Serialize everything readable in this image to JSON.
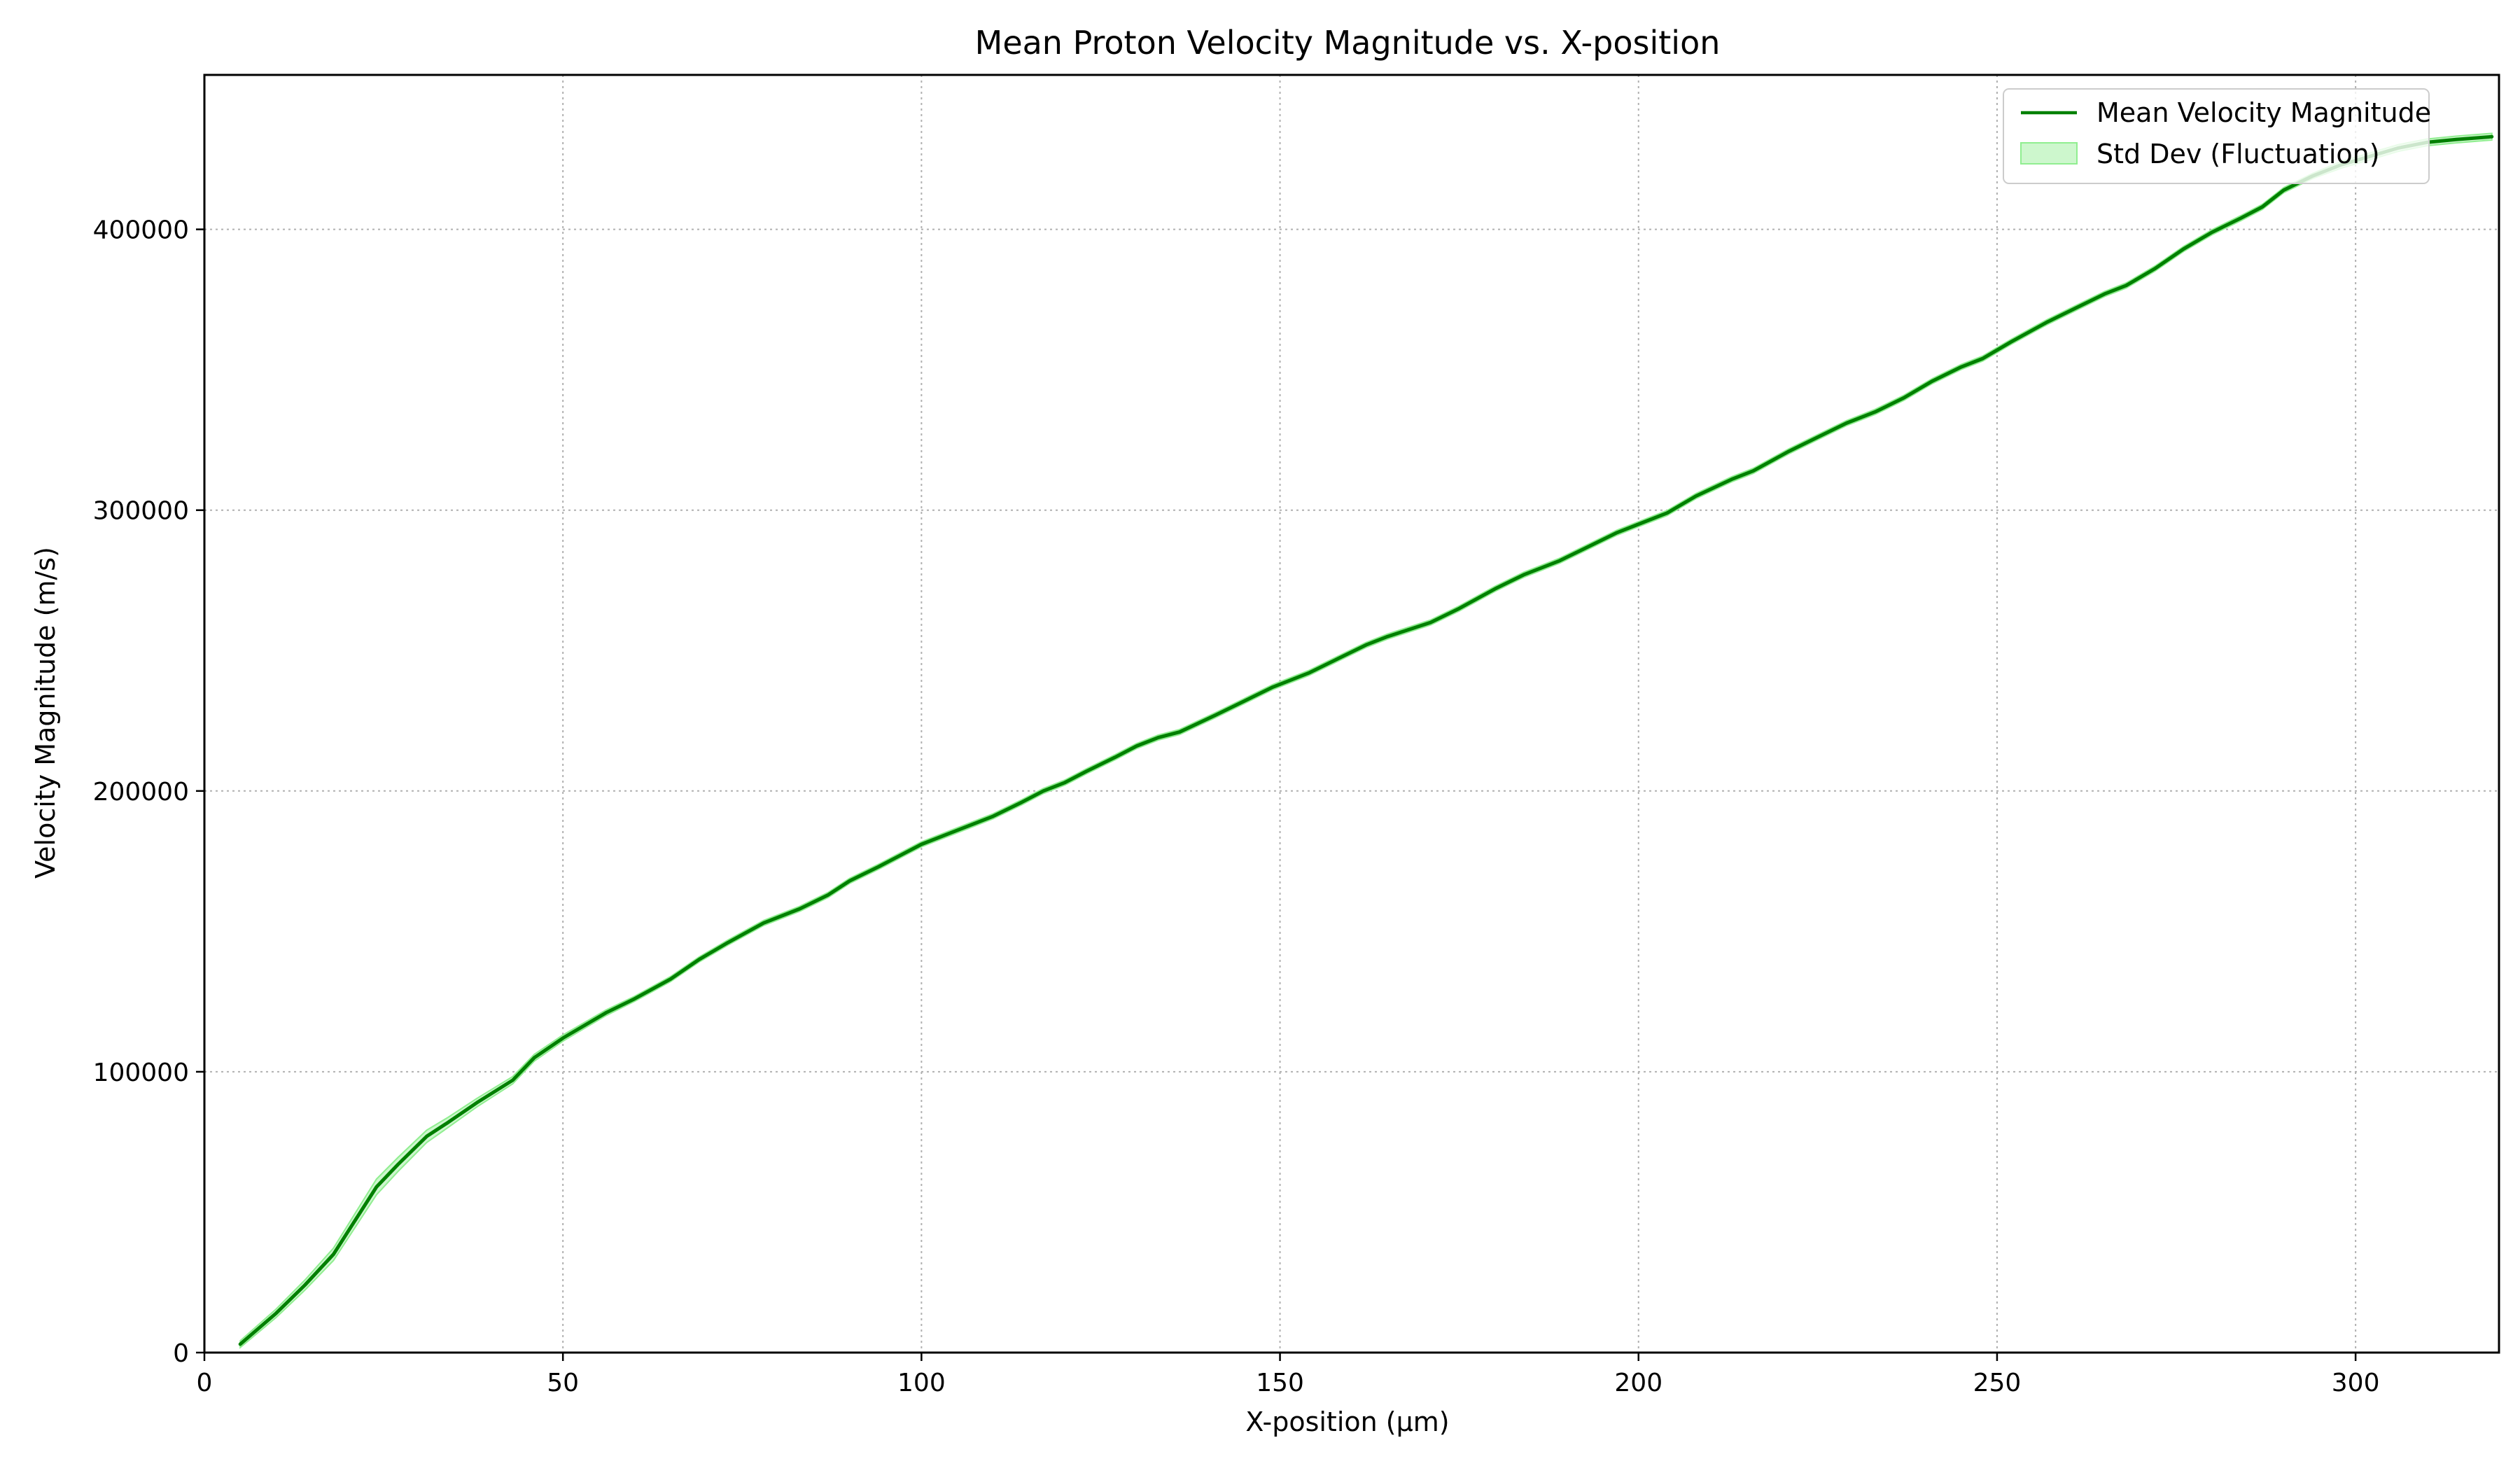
{
  "chart_data": {
    "type": "line",
    "title": "Mean Proton Velocity Magnitude vs. X-position",
    "xlabel": "X-position (µm)",
    "ylabel": "Velocity Magnitude (m/s)",
    "xlim": [
      0,
      320
    ],
    "ylim": [
      0,
      455000
    ],
    "x_ticks": [
      0,
      50,
      100,
      150,
      200,
      250,
      300
    ],
    "x_tick_labels": [
      "0",
      "50",
      "100",
      "150",
      "200",
      "250",
      "300"
    ],
    "y_ticks": [
      0,
      100000,
      200000,
      300000,
      400000
    ],
    "y_tick_labels": [
      "0",
      "100000",
      "200000",
      "300000",
      "400000"
    ],
    "grid": true,
    "legend_position": "upper-right",
    "colors": {
      "line": "#008000",
      "band": "#90ee90"
    },
    "series": [
      {
        "name": "Mean Velocity Magnitude",
        "kind": "line",
        "x": [
          5,
          10,
          14,
          18,
          21,
          24,
          27,
          31,
          34,
          38,
          43,
          46,
          50,
          56,
          60,
          65,
          69,
          73,
          78,
          83,
          87,
          90,
          94,
          97,
          100,
          104,
          107,
          110,
          114,
          117,
          120,
          123,
          127,
          130,
          133,
          136,
          141,
          145,
          149,
          154,
          158,
          162,
          165,
          171,
          175,
          180,
          184,
          189,
          193,
          197,
          200,
          204,
          208,
          213,
          216,
          221,
          225,
          229,
          233,
          237,
          241,
          245,
          248,
          252,
          257,
          261,
          265,
          268,
          272,
          276,
          280,
          284,
          287,
          290,
          294,
          298,
          302,
          306,
          310,
          314,
          319
        ],
        "y": [
          3000,
          14000,
          24000,
          35000,
          47000,
          59000,
          67000,
          77000,
          82000,
          89000,
          97000,
          105000,
          112000,
          121000,
          126000,
          133000,
          140000,
          146000,
          153000,
          158000,
          163000,
          168000,
          173000,
          177000,
          181000,
          185000,
          188000,
          191000,
          196000,
          200000,
          203000,
          207000,
          212000,
          216000,
          219000,
          221000,
          227000,
          232000,
          237000,
          242000,
          247000,
          252000,
          255000,
          260000,
          265000,
          272000,
          277000,
          282000,
          287000,
          292000,
          295000,
          299000,
          305000,
          311000,
          314000,
          321000,
          326000,
          331000,
          335000,
          340000,
          346000,
          351000,
          354000,
          360000,
          367000,
          372000,
          377000,
          380000,
          386000,
          393000,
          399000,
          404000,
          408000,
          414000,
          419000,
          423000,
          426000,
          429000,
          431000,
          432000,
          433000
        ]
      },
      {
        "name": "Std Dev (Fluctuation)",
        "kind": "band",
        "x": [
          5,
          10,
          14,
          18,
          21,
          24,
          27,
          31,
          34,
          38,
          43,
          46,
          50,
          56,
          60,
          65,
          69,
          73,
          78,
          83,
          87,
          90,
          94,
          97,
          100,
          104,
          107,
          110,
          114,
          117,
          120,
          123,
          127,
          130,
          133,
          136,
          141,
          145,
          149,
          154,
          158,
          162,
          165,
          171,
          175,
          180,
          184,
          189,
          193,
          197,
          200,
          204,
          208,
          213,
          216,
          221,
          225,
          229,
          233,
          237,
          241,
          245,
          248,
          252,
          257,
          261,
          265,
          268,
          272,
          276,
          280,
          284,
          287,
          290,
          294,
          298,
          302,
          306,
          310,
          314,
          319
        ],
        "spread": [
          1200,
          1500,
          1800,
          2200,
          2500,
          2800,
          2500,
          2200,
          1800,
          1500,
          1300,
          1200,
          1100,
          1000,
          900,
          900,
          900,
          900,
          900,
          900,
          900,
          900,
          900,
          900,
          900,
          900,
          900,
          900,
          900,
          900,
          900,
          900,
          900,
          900,
          900,
          900,
          900,
          900,
          900,
          900,
          900,
          900,
          900,
          900,
          900,
          900,
          900,
          900,
          900,
          900,
          900,
          900,
          900,
          900,
          900,
          900,
          900,
          900,
          900,
          900,
          900,
          900,
          900,
          900,
          900,
          900,
          900,
          900,
          900,
          900,
          900,
          900,
          900,
          900,
          900,
          1200,
          1200,
          1200,
          1200,
          1200,
          1200
        ]
      }
    ]
  }
}
